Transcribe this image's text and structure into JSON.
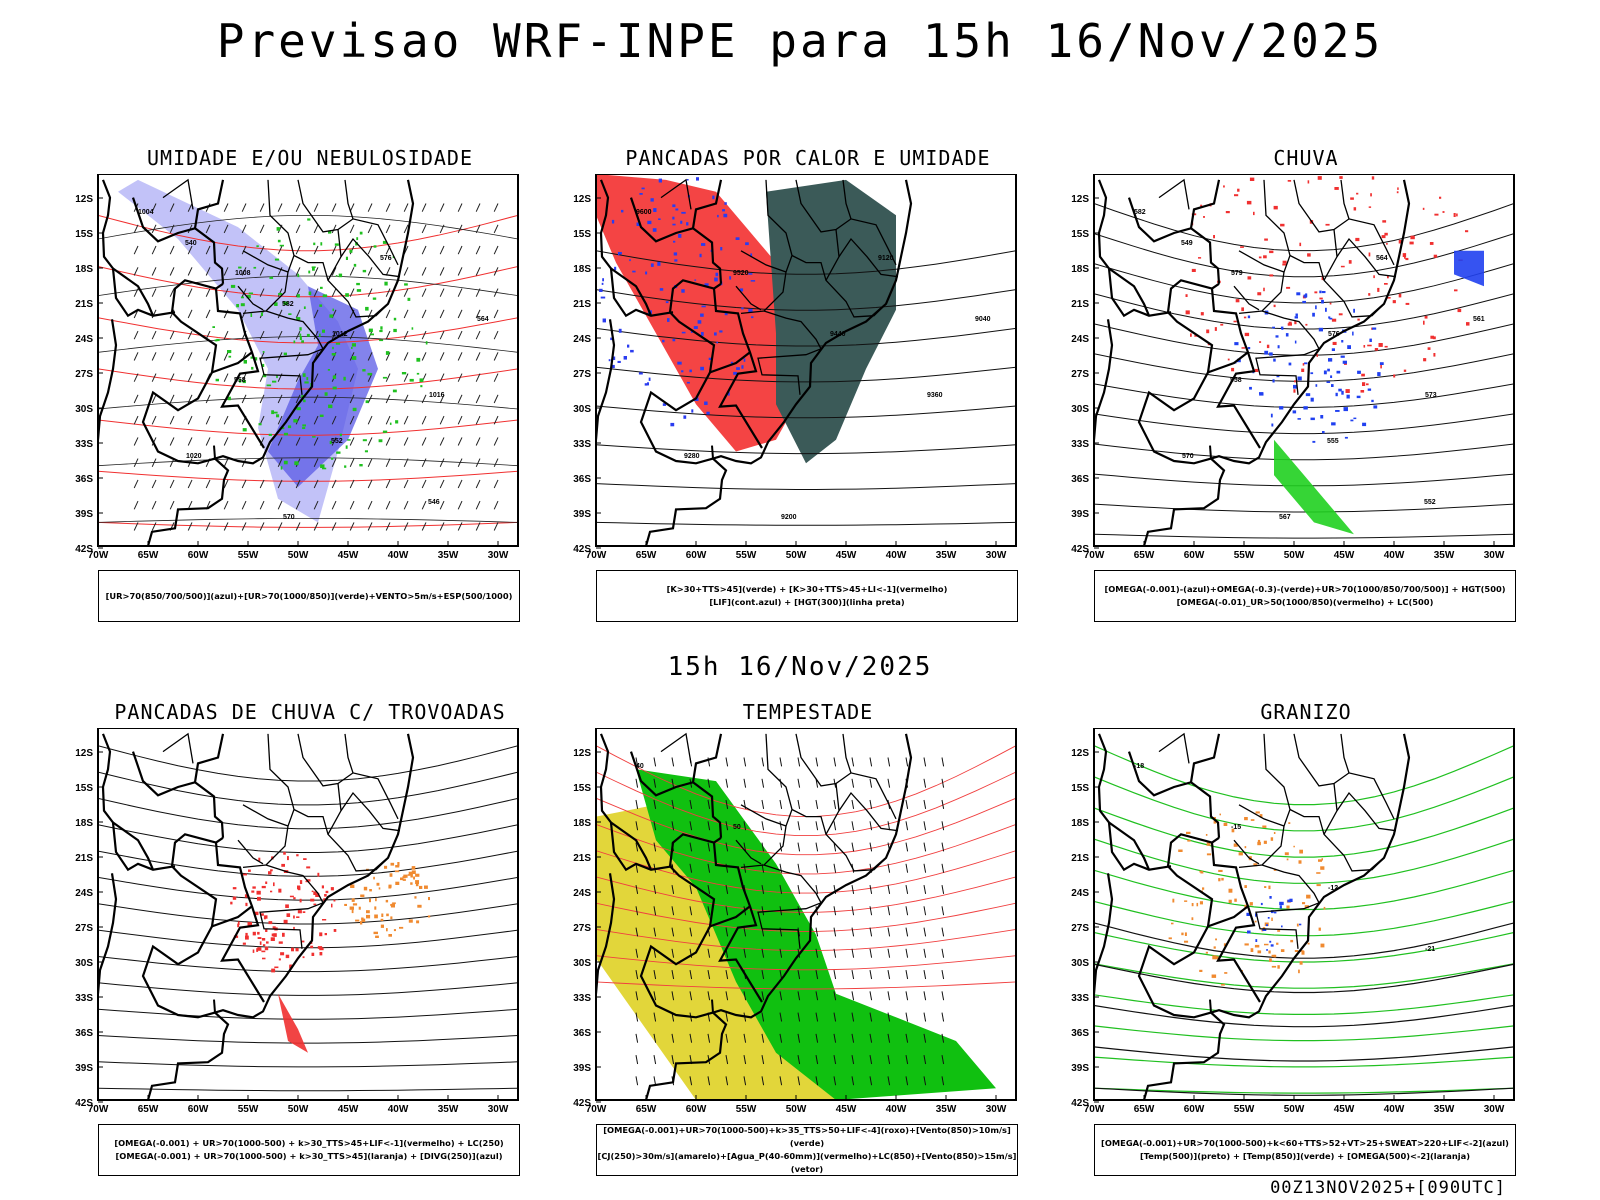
{
  "header": {
    "title": "Previsao WRF-INPE  para 15h 16/Nov/2025"
  },
  "subtitle": "15h 16/Nov/2025",
  "footer_stamp": "00Z13NOV2025+[090UTC]",
  "axes": {
    "lat_labels": [
      "12S",
      "15S",
      "18S",
      "21S",
      "24S",
      "27S",
      "30S",
      "33S",
      "36S",
      "39S",
      "42S"
    ],
    "lon_labels": [
      "70W",
      "65W",
      "60W",
      "55W",
      "50W",
      "45W",
      "40W",
      "35W",
      "30W"
    ]
  },
  "panels": [
    {
      "id": "umidade",
      "title": "UMIDADE E/OU NEBULOSIDADE",
      "legend": [
        "[UR>70(850/700/500)](azul)+[UR>70(1000/850)](verde)+VENTO>5m/s+ESP(500/1000)"
      ],
      "contour_labels": [
        "1004",
        "1008",
        "1012",
        "1016",
        "1020",
        "570",
        "576",
        "564",
        "558",
        "552",
        "546",
        "540",
        "582"
      ],
      "colors": {
        "fill": "#8f8ff2",
        "fill2": "#5a5ae6",
        "green": "#20c020",
        "red": "#f03030"
      }
    },
    {
      "id": "pancadas_calor",
      "title": "PANCADAS POR CALOR E UMIDADE",
      "legend": [
        "[K>30+TTS>45](verde) + [K>30+TTS>45+LI<-1](vermelho)",
        "[LIF](cont.azul) + [HGT(300)](linha preta)"
      ],
      "contour_labels": [
        "9600",
        "9520",
        "9440",
        "9360",
        "9280",
        "9200",
        "9120",
        "9040"
      ],
      "colors": {
        "fill": "#f44444",
        "fill2": "#3b5a58",
        "blue": "#2a3cf0"
      }
    },
    {
      "id": "chuva",
      "title": "CHUVA",
      "legend": [
        "[OMEGA(-0.001)-(azul)+OMEGA(-0.3)-(verde)+UR>70(1000/850/700/500)] + HGT(500)",
        "[OMEGA(-0.01)_UR>50(1000/850)(vermelho) + LC(500)"
      ],
      "contour_labels": [
        "582",
        "579",
        "576",
        "573",
        "570",
        "567",
        "564",
        "561",
        "558",
        "555",
        "552",
        "549"
      ],
      "colors": {
        "red": "#f03030",
        "blue": "#2040f0",
        "green": "#20d020"
      }
    },
    {
      "id": "trovoadas",
      "title": "PANCADAS DE CHUVA C/ TROVOADAS",
      "legend": [
        "[OMEGA(-0.001) + UR>70(1000-500) + k>30_TTS>45+LIF<-1](vermelho) + LC(250)",
        "[OMEGA(-0.001) + UR>70(1000-500) + k>30_TTS>45](laranja) + [DIVG(250)](azul)"
      ],
      "contour_labels": [],
      "colors": {
        "red": "#f03030",
        "orange": "#f08a30",
        "blue": "#2040f0"
      }
    },
    {
      "id": "tempestade",
      "title": "TEMPESTADE",
      "legend": [
        "[OMEGA(-0.001)+UR>70(1000-500)+k>35_TTS>50+LIF<-4](roxo)+[Vento(850)>10m/s](verde)",
        "[CJ(250)>30m/s](amarelo)+[Agua_P(40-60mm)](vermelho)+LC(850)+[Vento(850)>15m/s](vetor)"
      ],
      "contour_labels": [
        "40",
        "50"
      ],
      "colors": {
        "green": "#10c010",
        "yellow": "#e2d63a",
        "red": "#f04040"
      }
    },
    {
      "id": "granizo",
      "title": "GRANIZO",
      "legend": [
        "[OMEGA(-0.001)+UR>70(1000-500)+k<60+TTS>52+VT>25+SWEAT>220+LIF<-2](azul)",
        "[Temp(500)](preto) + [Temp(850)](verde) + [OMEGA(500)<-2](laranja)"
      ],
      "contour_labels": [
        "-18",
        "-15",
        "-12",
        "-21"
      ],
      "colors": {
        "green": "#20c020",
        "orange": "#f08a30",
        "blue": "#2040f0"
      }
    }
  ]
}
